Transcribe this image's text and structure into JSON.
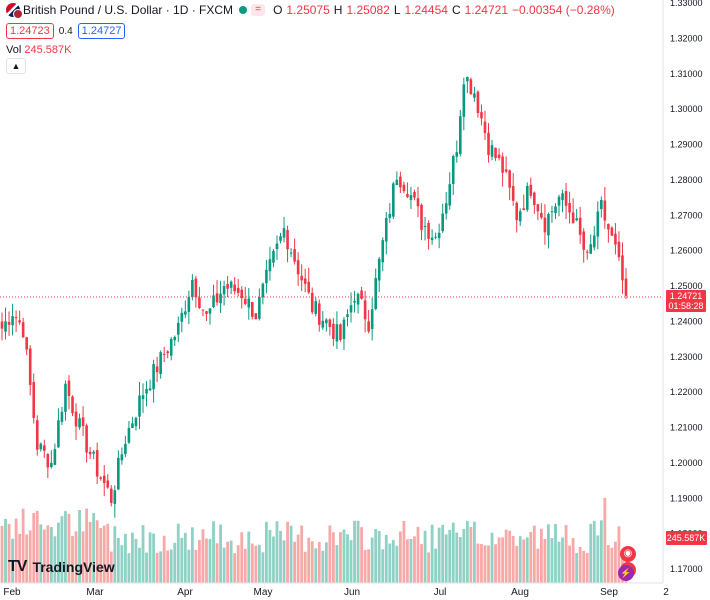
{
  "header": {
    "symbol": "British Pound / U.S. Dollar · 1D · FXCM",
    "eq_label": "=",
    "o_label": "O",
    "o": "1.25075",
    "h_label": "H",
    "h": "1.25082",
    "l_label": "L",
    "l": "1.24454",
    "c_label": "C",
    "c": "1.24721",
    "change": "−0.00354 (−0.28%)"
  },
  "trade": {
    "sell": "1.24723",
    "spread": "0.4",
    "buy": "1.24727"
  },
  "volume": {
    "label": "Vol",
    "value": "245.587K"
  },
  "collapse_icon": "chevron-up",
  "logo": {
    "mark": "TV",
    "text": "TradingView"
  },
  "colors": {
    "up": "#089981",
    "down": "#f23645",
    "up_vol": "#8fd1c4",
    "down_vol": "#f7a9a7",
    "axis": "#131722"
  },
  "chart_data": {
    "type": "candlestick",
    "title": "British Pound / U.S. Dollar · 1D · FXCM",
    "timeframe": "1D",
    "x_ticks": [
      "Feb",
      "Mar",
      "Apr",
      "May",
      "Jun",
      "Jul",
      "Aug",
      "Sep",
      "2"
    ],
    "y_ticks": [
      "1.17000",
      "1.18000",
      "1.19000",
      "1.20000",
      "1.21000",
      "1.22000",
      "1.23000",
      "1.24000",
      "1.25000",
      "1.26000",
      "1.27000",
      "1.28000",
      "1.29000",
      "1.30000",
      "1.31000",
      "1.32000",
      "1.33000"
    ],
    "ylim": [
      1.17,
      1.33
    ],
    "last_price": 1.24721,
    "last_price_label": "1.24721",
    "countdown": "01:58:28",
    "volume_label": "245.587K",
    "grid": false,
    "anchors": [
      [
        0,
        1.238
      ],
      [
        3,
        1.243
      ],
      [
        6,
        1.238
      ],
      [
        10,
        1.205
      ],
      [
        14,
        1.2
      ],
      [
        18,
        1.222
      ],
      [
        22,
        1.21
      ],
      [
        27,
        1.198
      ],
      [
        31,
        1.19
      ],
      [
        35,
        1.207
      ],
      [
        40,
        1.22
      ],
      [
        45,
        1.229
      ],
      [
        50,
        1.238
      ],
      [
        54,
        1.252
      ],
      [
        58,
        1.241
      ],
      [
        63,
        1.25
      ],
      [
        68,
        1.248
      ],
      [
        72,
        1.242
      ],
      [
        76,
        1.255
      ],
      [
        80,
        1.266
      ],
      [
        84,
        1.255
      ],
      [
        88,
        1.244
      ],
      [
        92,
        1.24
      ],
      [
        96,
        1.235
      ],
      [
        100,
        1.248
      ],
      [
        104,
        1.24
      ],
      [
        108,
        1.262
      ],
      [
        112,
        1.282
      ],
      [
        115,
        1.278
      ],
      [
        119,
        1.268
      ],
      [
        123,
        1.264
      ],
      [
        126,
        1.275
      ],
      [
        129,
        1.29
      ],
      [
        131,
        1.31
      ],
      [
        134,
        1.305
      ],
      [
        138,
        1.29
      ],
      [
        142,
        1.283
      ],
      [
        146,
        1.27
      ],
      [
        150,
        1.278
      ],
      [
        154,
        1.268
      ],
      [
        158,
        1.275
      ],
      [
        162,
        1.27
      ],
      [
        166,
        1.257
      ],
      [
        170,
        1.272
      ],
      [
        174,
        1.26
      ],
      [
        177,
        1.247
      ]
    ],
    "volume_range": [
      0.35,
      1.0
    ]
  }
}
